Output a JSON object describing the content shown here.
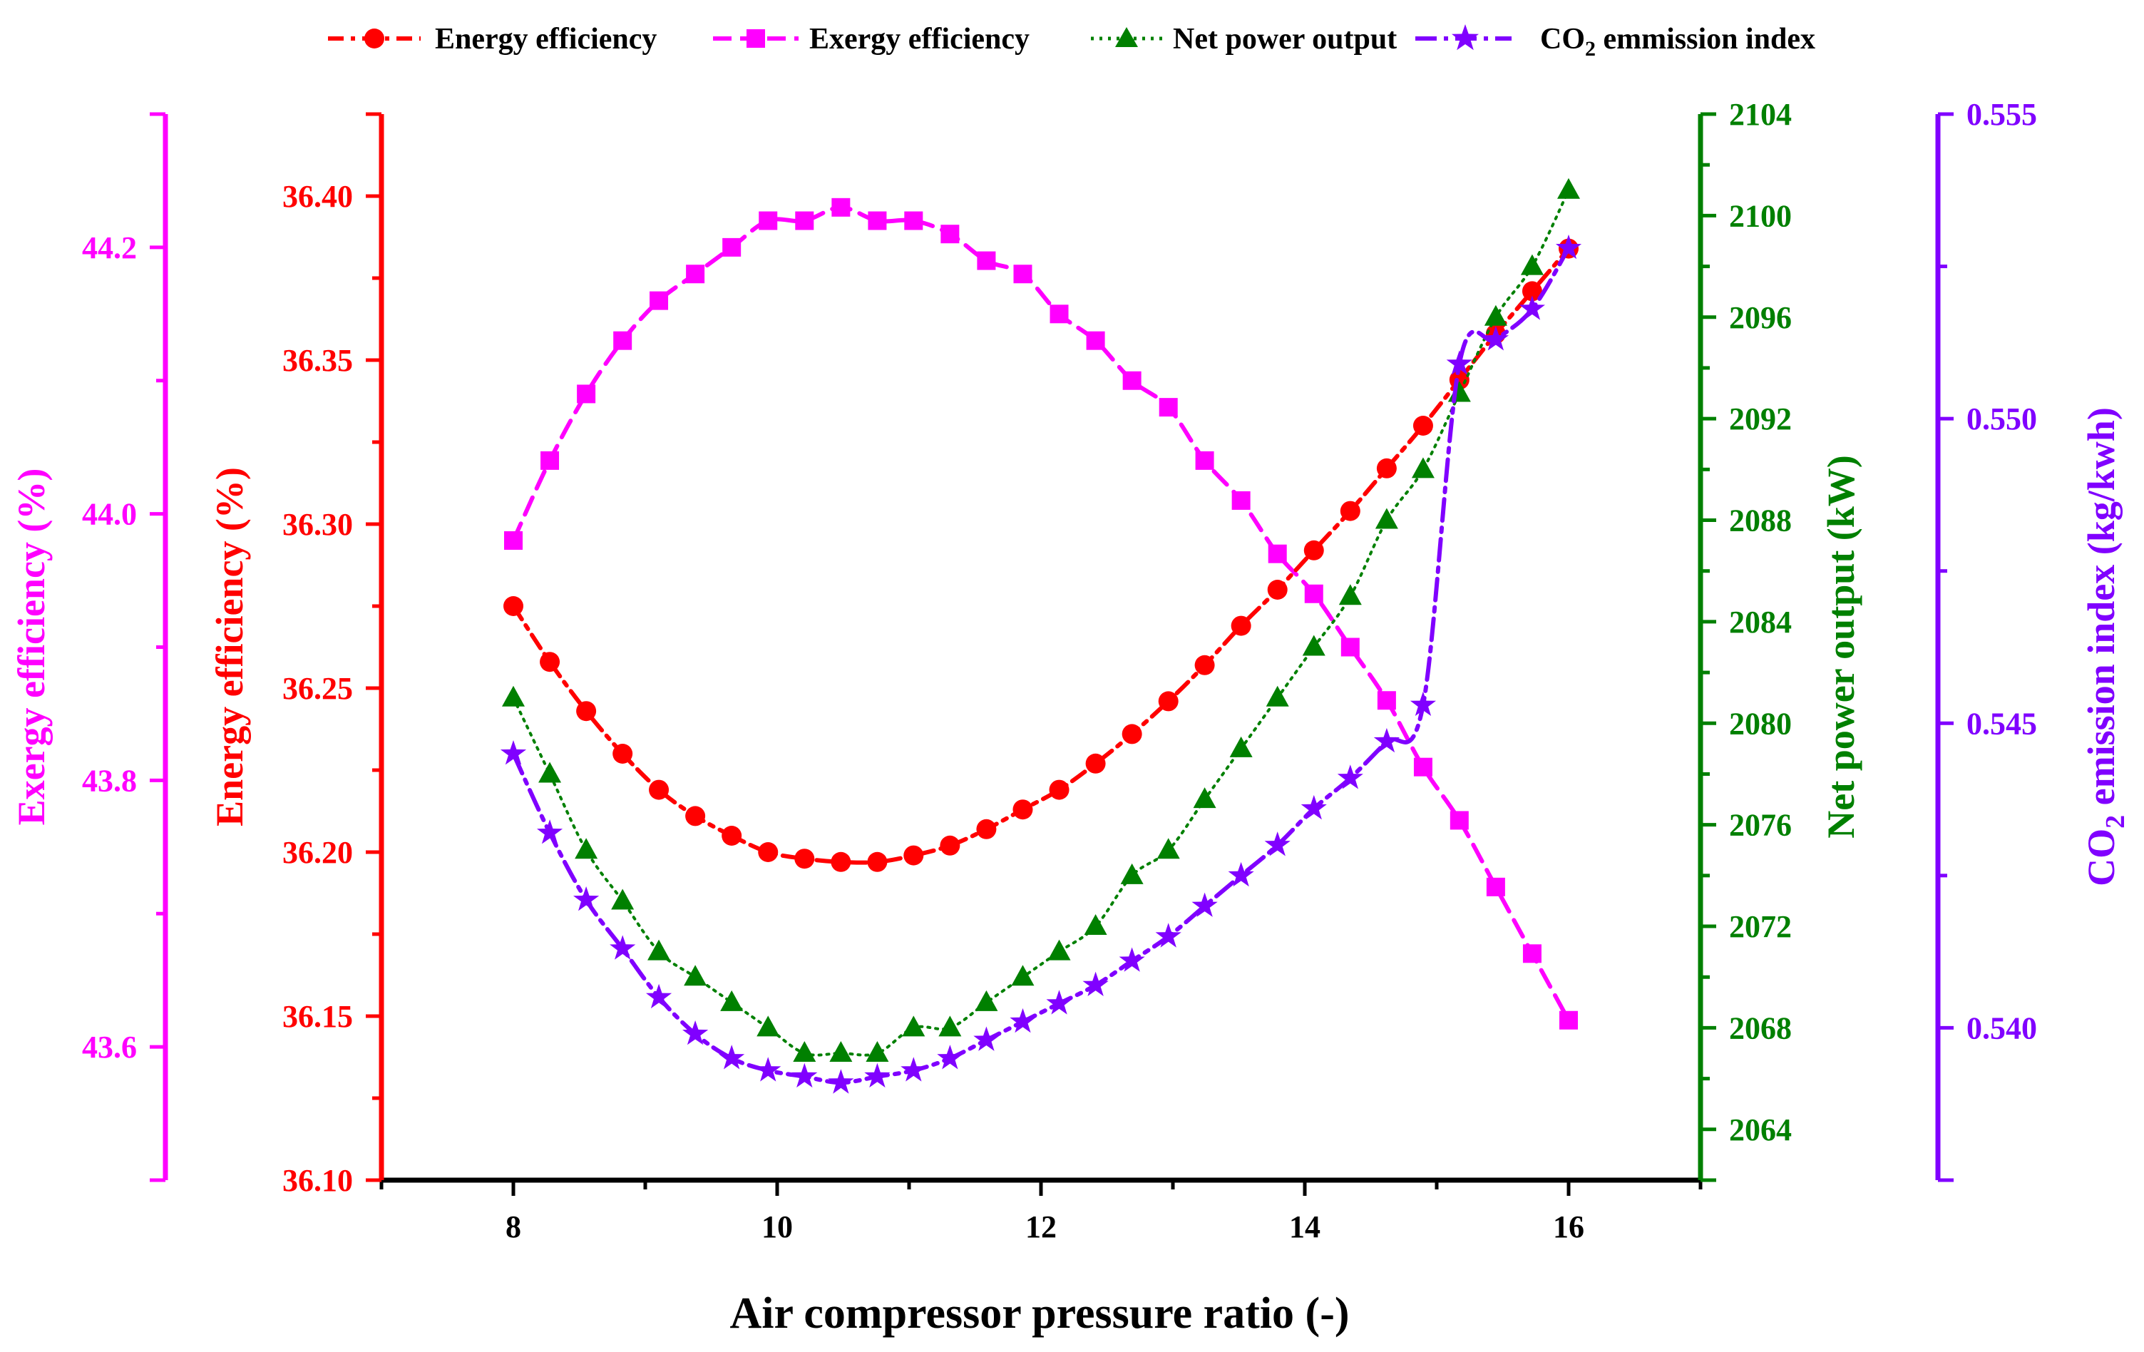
{
  "chart_data": {
    "type": "line",
    "xlabel": "Air compressor pressure ratio (-)",
    "xlim": [
      7,
      17
    ],
    "xticks": [
      8,
      10,
      12,
      14,
      16
    ],
    "x": [
      8.0,
      8.276,
      8.552,
      8.828,
      9.103,
      9.379,
      9.655,
      9.931,
      10.207,
      10.483,
      10.759,
      11.034,
      11.31,
      11.586,
      11.862,
      12.138,
      12.414,
      12.69,
      12.966,
      13.241,
      13.517,
      13.793,
      14.069,
      14.345,
      14.621,
      14.897,
      15.172,
      15.448,
      15.724,
      16.0
    ],
    "legend_position": "top",
    "colors": {
      "energy": "#ff0000",
      "exergy": "#ff00ff",
      "power": "#008000",
      "co2": "#8000ff",
      "frame": "#000000"
    },
    "axes": {
      "exergy": {
        "label": "Exergy efficiency (%)",
        "ylim": [
          43.5,
          44.3
        ],
        "ticks": [
          43.6,
          43.8,
          44.0,
          44.2
        ],
        "tick_labels": [
          "43.6",
          "43.8",
          "44.0",
          "44.2"
        ]
      },
      "energy": {
        "label": "Energy efficiency (%)",
        "ylim": [
          36.1,
          36.425
        ],
        "ticks": [
          36.1,
          36.15,
          36.2,
          36.25,
          36.3,
          36.35,
          36.4
        ],
        "tick_labels": [
          "36.10",
          "36.15",
          "36.20",
          "36.25",
          "36.30",
          "36.35",
          "36.40"
        ]
      },
      "power": {
        "label": "Net power output (kW)",
        "ylim": [
          2062,
          2104
        ],
        "ticks": [
          2064,
          2068,
          2072,
          2076,
          2080,
          2084,
          2088,
          2092,
          2096,
          2100,
          2104
        ],
        "tick_labels": [
          "2064",
          "2068",
          "2072",
          "2076",
          "2080",
          "2084",
          "2088",
          "2092",
          "2096",
          "2100",
          "2104"
        ]
      },
      "co2": {
        "label_main": "CO",
        "label_sub": "2",
        "label_rest": " emission index (kg/kwh)",
        "ylim": [
          0.5375,
          0.555
        ],
        "ticks": [
          0.54,
          0.545,
          0.55,
          0.555
        ],
        "tick_labels": [
          "0.540",
          "0.545",
          "0.550",
          "0.555"
        ]
      }
    },
    "series": [
      {
        "key": "energy",
        "name": "Energy efficiency",
        "axis": "energy",
        "marker": "circle",
        "values": [
          36.275,
          36.258,
          36.243,
          36.23,
          36.219,
          36.211,
          36.205,
          36.2,
          36.198,
          36.197,
          36.197,
          36.199,
          36.202,
          36.207,
          36.213,
          36.219,
          36.227,
          36.236,
          36.246,
          36.257,
          36.269,
          36.28,
          36.292,
          36.304,
          36.317,
          36.33,
          36.344,
          36.358,
          36.371,
          36.384
        ]
      },
      {
        "key": "exergy",
        "name": "Exergy efficiency",
        "axis": "exergy",
        "marker": "square",
        "values": [
          43.98,
          44.04,
          44.09,
          44.13,
          44.16,
          44.18,
          44.2,
          44.22,
          44.22,
          44.23,
          44.22,
          44.22,
          44.21,
          44.19,
          44.18,
          44.15,
          44.13,
          44.1,
          44.08,
          44.04,
          44.01,
          43.97,
          43.94,
          43.9,
          43.86,
          43.81,
          43.77,
          43.72,
          43.67,
          43.62
        ]
      },
      {
        "key": "power",
        "name": "Net power output",
        "axis": "power",
        "marker": "triangle",
        "values": [
          2081,
          2078,
          2075,
          2073,
          2071,
          2070,
          2069,
          2068,
          2067,
          2067,
          2067,
          2068,
          2068,
          2069,
          2070,
          2071,
          2072,
          2074,
          2075,
          2077,
          2079,
          2081,
          2083,
          2085,
          2088,
          2090,
          2093,
          2096,
          2098,
          2101
        ]
      },
      {
        "key": "co2",
        "name": "CO2 emmission index",
        "legend_main": "CO",
        "legend_sub": "2",
        "legend_rest": " emmission index",
        "axis": "co2",
        "marker": "star",
        "values": [
          0.5445,
          0.5432,
          0.5421,
          0.5413,
          0.5405,
          0.5399,
          0.5395,
          0.5393,
          0.5392,
          0.5391,
          0.5392,
          0.5393,
          0.5395,
          0.5398,
          0.5401,
          0.5404,
          0.5407,
          0.5411,
          0.5415,
          0.542,
          0.5425,
          0.543,
          0.5436,
          0.5441,
          0.5447,
          0.5453,
          0.5509,
          0.5513,
          0.5518,
          0.5528
        ]
      }
    ]
  }
}
